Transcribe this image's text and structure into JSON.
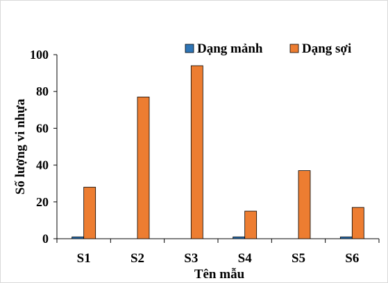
{
  "chart_data": {
    "type": "bar",
    "title": "",
    "xlabel": "Tên mẫu",
    "ylabel": "Số lượng vi nhựa",
    "categories": [
      "S1",
      "S2",
      "S3",
      "S4",
      "S5",
      "S6"
    ],
    "series": [
      {
        "name": "Dạng mảnh",
        "color": "#2E75B6",
        "values": [
          1,
          0,
          0,
          1,
          0,
          1
        ]
      },
      {
        "name": "Dạng sợi",
        "color": "#ED7D31",
        "values": [
          28,
          77,
          94,
          15,
          37,
          17
        ]
      }
    ],
    "ylim": [
      0,
      100
    ],
    "yticks": [
      "0",
      "20",
      "40",
      "60",
      "80",
      "100"
    ],
    "grid": false,
    "legend_position": "top-right"
  }
}
